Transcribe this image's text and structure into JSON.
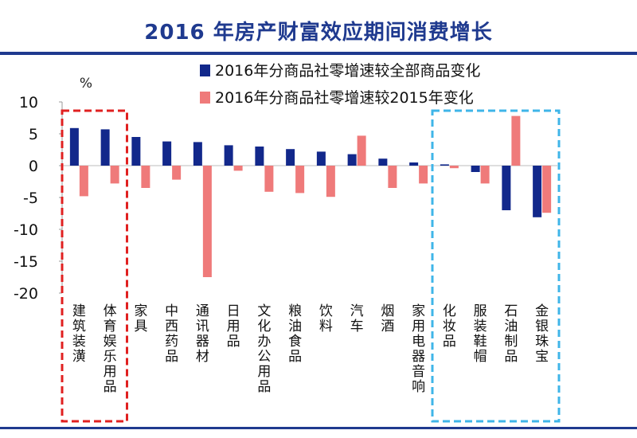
{
  "title": "2016 年房产财富效应期间消费增长",
  "chart_data": {
    "type": "bar",
    "unit_label": "%",
    "categories": [
      "建筑装潢",
      "体育娱乐用品",
      "家具",
      "中西药品",
      "通讯器材",
      "日用品",
      "文化办公用品",
      "粮油食品",
      "饮料",
      "汽车",
      "烟酒",
      "家用电器音响",
      "化妆品",
      "服装鞋帽",
      "石油制品",
      "金银珠宝"
    ],
    "series": [
      {
        "name": "2016年分商品社零增速较全部商品变化",
        "color": "#12288b",
        "values": [
          5.9,
          5.7,
          4.5,
          3.8,
          3.7,
          3.2,
          3.0,
          2.6,
          2.2,
          1.8,
          1.1,
          0.5,
          0.2,
          -1.0,
          -7.0,
          -8.1
        ]
      },
      {
        "name": "2016年分商品社零增速较2015年变化",
        "color": "#ef7a7a",
        "values": [
          -4.8,
          -2.8,
          -3.5,
          -2.2,
          -17.5,
          -0.8,
          -4.1,
          -4.3,
          -4.9,
          4.7,
          -3.5,
          -2.8,
          -0.4,
          -2.8,
          7.8,
          -7.4
        ]
      }
    ],
    "ylim": [
      -20,
      10
    ],
    "yticks": [
      10,
      5,
      0,
      -5,
      -10,
      -15,
      -20
    ],
    "legend_position": "top-right",
    "highlight_groups": [
      {
        "color": "#e02020",
        "from": 0,
        "to": 1
      },
      {
        "color": "#3fb5e8",
        "from": 12,
        "to": 15
      }
    ]
  }
}
